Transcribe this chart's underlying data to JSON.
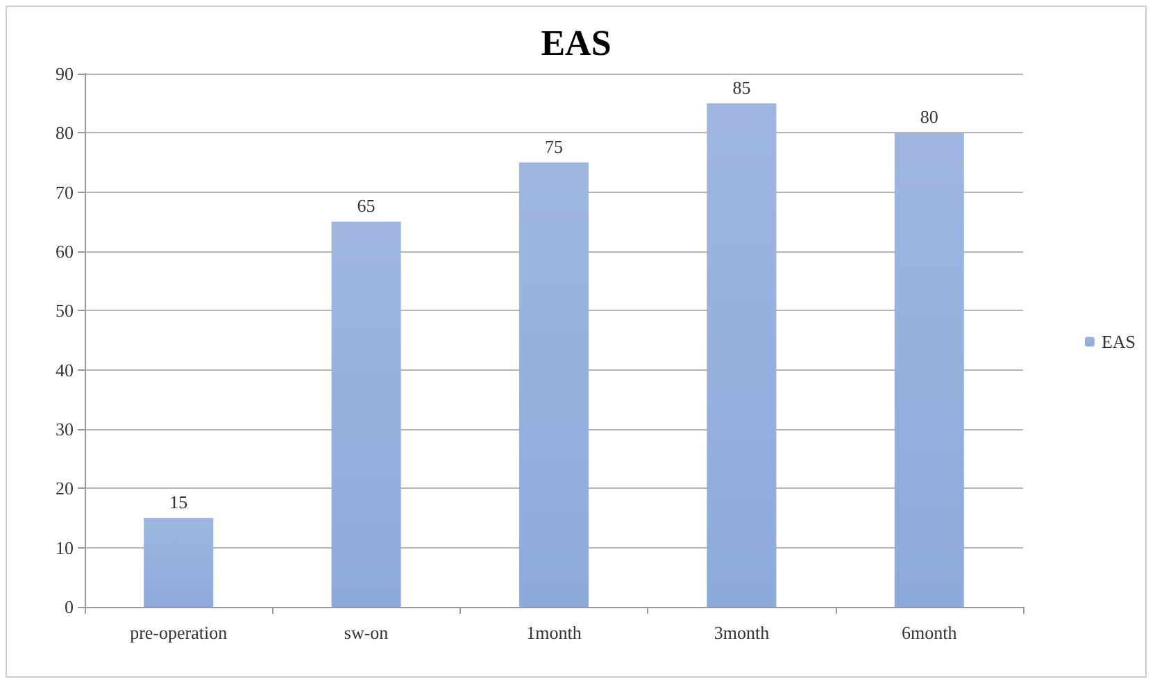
{
  "chart_data": {
    "type": "bar",
    "title": "EAS",
    "categories": [
      "pre-operation",
      "sw-on",
      "1month",
      "3month",
      "6month"
    ],
    "series": [
      {
        "name": "EAS",
        "color": "#8eaadb",
        "values": [
          15,
          65,
          75,
          85,
          80
        ]
      }
    ],
    "ylim": [
      0,
      90
    ],
    "yticks": [
      0,
      10,
      20,
      30,
      40,
      50,
      60,
      70,
      80,
      90
    ],
    "grid": "y",
    "legend": "right",
    "data_labels": true
  }
}
